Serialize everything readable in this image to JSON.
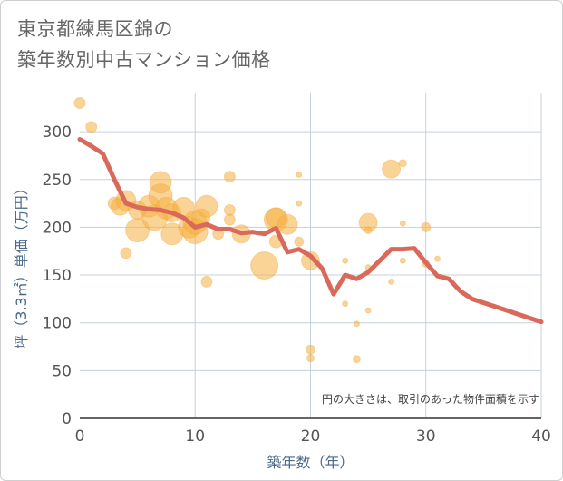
{
  "title_lines": [
    "東京都練馬区錦の",
    "築年数別中古マンション価格"
  ],
  "chart_data": {
    "type": "scatter",
    "xlabel": "築年数（年）",
    "ylabel": "坪（3.3㎡）単価（万円）",
    "xlim": [
      0,
      40
    ],
    "ylim": [
      0,
      340
    ],
    "xticks": [
      0,
      10,
      20,
      30,
      40
    ],
    "yticks": [
      0,
      50,
      100,
      150,
      200,
      250,
      300
    ],
    "grid": true,
    "note": "円の大きさは、取引のあった物件面積を示す",
    "colors": {
      "bubble": "#f5b042",
      "line": "#d9695a",
      "grid": "#c5d1de"
    },
    "bubbles": [
      {
        "x": 0,
        "y": 330,
        "s": 6
      },
      {
        "x": 1,
        "y": 305,
        "s": 6
      },
      {
        "x": 3,
        "y": 225,
        "s": 7
      },
      {
        "x": 3.5,
        "y": 222,
        "s": 10
      },
      {
        "x": 4,
        "y": 228,
        "s": 11
      },
      {
        "x": 4,
        "y": 173,
        "s": 6
      },
      {
        "x": 5,
        "y": 218,
        "s": 10
      },
      {
        "x": 5,
        "y": 197,
        "s": 13
      },
      {
        "x": 6,
        "y": 222,
        "s": 12
      },
      {
        "x": 6.5,
        "y": 210,
        "s": 14
      },
      {
        "x": 7,
        "y": 247,
        "s": 12
      },
      {
        "x": 7,
        "y": 233,
        "s": 13
      },
      {
        "x": 7.5,
        "y": 220,
        "s": 12
      },
      {
        "x": 8,
        "y": 193,
        "s": 12
      },
      {
        "x": 8,
        "y": 215,
        "s": 10
      },
      {
        "x": 9,
        "y": 220,
        "s": 12
      },
      {
        "x": 9.5,
        "y": 200,
        "s": 12
      },
      {
        "x": 10,
        "y": 196,
        "s": 14
      },
      {
        "x": 10,
        "y": 205,
        "s": 13
      },
      {
        "x": 10.5,
        "y": 210,
        "s": 10
      },
      {
        "x": 11,
        "y": 222,
        "s": 12
      },
      {
        "x": 11,
        "y": 143,
        "s": 6
      },
      {
        "x": 12,
        "y": 193,
        "s": 6
      },
      {
        "x": 13,
        "y": 253,
        "s": 6
      },
      {
        "x": 13,
        "y": 218,
        "s": 6
      },
      {
        "x": 13,
        "y": 208,
        "s": 6
      },
      {
        "x": 14,
        "y": 193,
        "s": 10
      },
      {
        "x": 16,
        "y": 160,
        "s": 15
      },
      {
        "x": 17,
        "y": 208,
        "s": 13
      },
      {
        "x": 17,
        "y": 210,
        "s": 11
      },
      {
        "x": 17,
        "y": 185,
        "s": 7
      },
      {
        "x": 18,
        "y": 203,
        "s": 11
      },
      {
        "x": 19,
        "y": 255,
        "s": 3
      },
      {
        "x": 19,
        "y": 225,
        "s": 3
      },
      {
        "x": 19,
        "y": 185,
        "s": 5
      },
      {
        "x": 20,
        "y": 165,
        "s": 10
      },
      {
        "x": 20,
        "y": 72,
        "s": 5
      },
      {
        "x": 20,
        "y": 63,
        "s": 4
      },
      {
        "x": 23,
        "y": 165,
        "s": 3
      },
      {
        "x": 23,
        "y": 120,
        "s": 3
      },
      {
        "x": 24,
        "y": 99,
        "s": 3
      },
      {
        "x": 24,
        "y": 62,
        "s": 4
      },
      {
        "x": 25,
        "y": 205,
        "s": 10
      },
      {
        "x": 25,
        "y": 197,
        "s": 4
      },
      {
        "x": 25,
        "y": 158,
        "s": 3
      },
      {
        "x": 25,
        "y": 113,
        "s": 3
      },
      {
        "x": 27,
        "y": 261,
        "s": 10
      },
      {
        "x": 27,
        "y": 143,
        "s": 3
      },
      {
        "x": 28,
        "y": 267,
        "s": 4
      },
      {
        "x": 28,
        "y": 204,
        "s": 3
      },
      {
        "x": 28,
        "y": 165,
        "s": 3
      },
      {
        "x": 30,
        "y": 200,
        "s": 5
      },
      {
        "x": 30,
        "y": 162,
        "s": 4
      },
      {
        "x": 31,
        "y": 167,
        "s": 3
      }
    ],
    "line": {
      "x": [
        0,
        1,
        2,
        3,
        4,
        5,
        6,
        7,
        8,
        9,
        10,
        11,
        12,
        13,
        14,
        15,
        16,
        17,
        18,
        19,
        20,
        21,
        22,
        23,
        24,
        25,
        26,
        27,
        28,
        29,
        30,
        31,
        32,
        33,
        34,
        35,
        36,
        37,
        38,
        39,
        40
      ],
      "y": [
        292,
        285,
        277,
        250,
        225,
        221,
        219,
        218,
        215,
        210,
        200,
        203,
        198,
        198,
        194,
        195,
        193,
        199,
        174,
        177,
        170,
        157,
        130,
        150,
        146,
        153,
        165,
        177,
        177,
        178,
        163,
        149,
        146,
        133,
        125,
        121,
        117,
        113,
        109,
        105,
        101
      ]
    }
  }
}
